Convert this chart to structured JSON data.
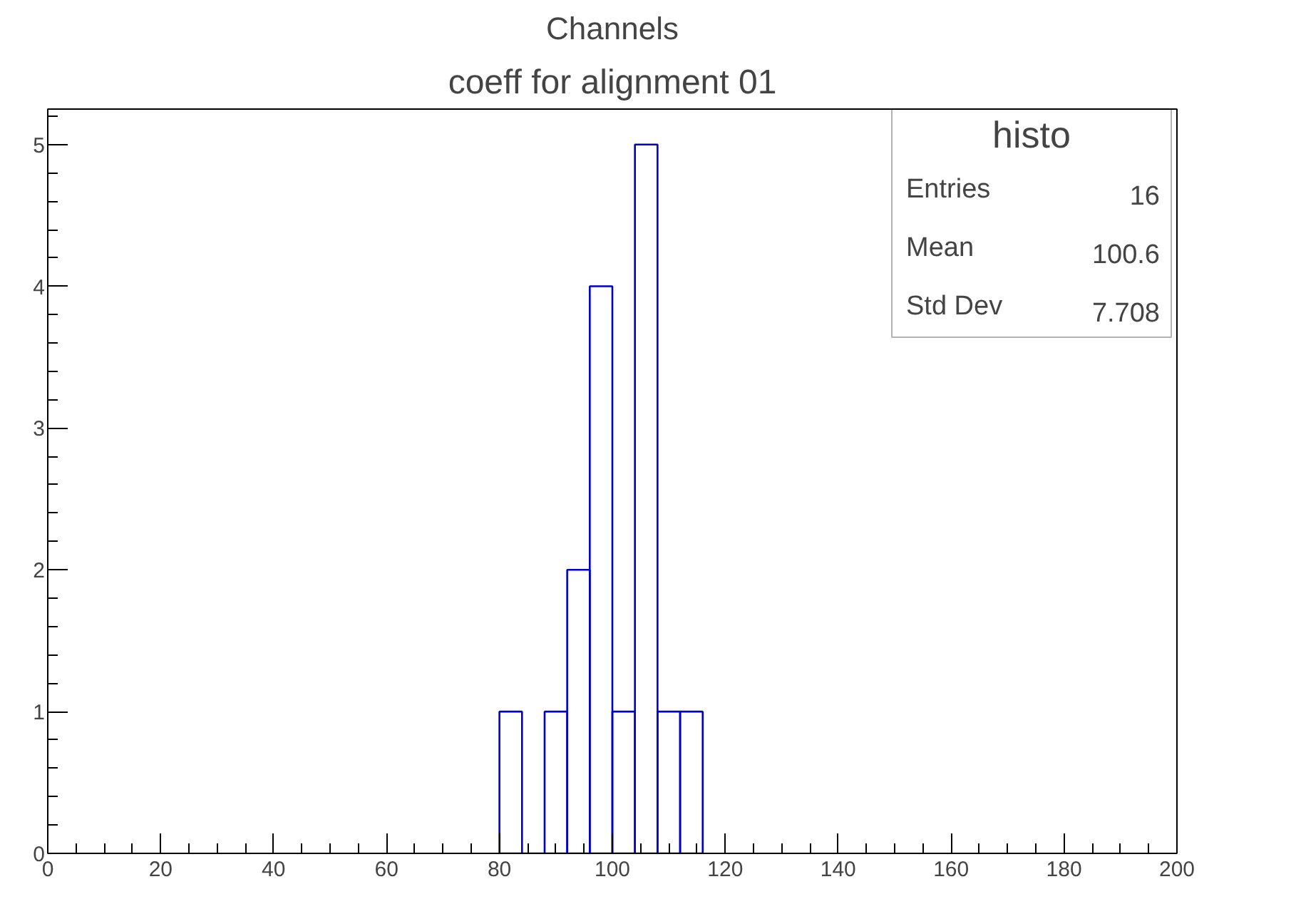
{
  "chart_data": {
    "type": "histogram",
    "title": "coeff for alignment 01",
    "annotations": [
      "Channels",
      "histo",
      "Entries 16",
      "Mean 100.6",
      "Std Dev 7.708"
    ],
    "bins": [
      80,
      84,
      88,
      92,
      96,
      100,
      104,
      108,
      112,
      116
    ],
    "values": [
      1,
      0,
      1,
      2,
      4,
      1,
      5,
      1,
      1
    ],
    "color": "#0000cc",
    "xlim": [
      0,
      200
    ],
    "xticks": [
      0,
      20,
      40,
      60,
      80,
      100,
      120,
      140,
      160,
      180,
      200
    ],
    "ylim": [
      0,
      5.25
    ],
    "yticks": [
      0,
      1,
      2,
      3,
      4,
      5
    ],
    "grid": false
  }
}
